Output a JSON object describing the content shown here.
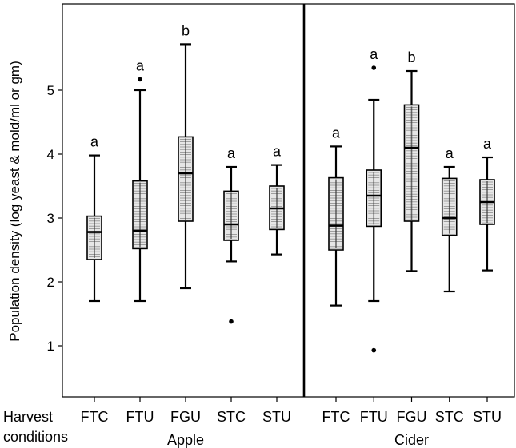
{
  "chart_data": {
    "type": "box",
    "ylabel": "Population density (log yeast & mold/ml or gm)",
    "xlabel_prefix": [
      "Harvest",
      "conditions"
    ],
    "ylim": [
      0.2,
      6.35
    ],
    "yticks": [
      1,
      2,
      3,
      4,
      5
    ],
    "panels": [
      {
        "name": "Apple",
        "categories": [
          "FTC",
          "FTU",
          "FGU",
          "STC",
          "STU"
        ],
        "boxes": [
          {
            "category": "FTC",
            "min": 1.7,
            "q1": 2.35,
            "median": 2.78,
            "q3": 3.03,
            "max": 3.98,
            "outliers": [],
            "letter": "a"
          },
          {
            "category": "FTU",
            "min": 1.7,
            "q1": 2.52,
            "median": 2.8,
            "q3": 3.58,
            "max": 5.0,
            "outliers": [
              5.17
            ],
            "letter": "a"
          },
          {
            "category": "FGU",
            "min": 1.9,
            "q1": 2.95,
            "median": 3.7,
            "q3": 4.27,
            "max": 5.72,
            "outliers": [],
            "letter": "b"
          },
          {
            "category": "STC",
            "min": 2.32,
            "q1": 2.65,
            "median": 2.9,
            "q3": 3.42,
            "max": 3.8,
            "outliers": [
              1.38
            ],
            "letter": "a"
          },
          {
            "category": "STU",
            "min": 2.43,
            "q1": 2.82,
            "median": 3.15,
            "q3": 3.5,
            "max": 3.83,
            "outliers": [],
            "letter": "a"
          }
        ]
      },
      {
        "name": "Cider",
        "categories": [
          "FTC",
          "FTU",
          "FGU",
          "STC",
          "STU"
        ],
        "boxes": [
          {
            "category": "FTC",
            "min": 1.63,
            "q1": 2.5,
            "median": 2.88,
            "q3": 3.63,
            "max": 4.12,
            "outliers": [],
            "letter": "a"
          },
          {
            "category": "FTU",
            "min": 1.7,
            "q1": 2.87,
            "median": 3.35,
            "q3": 3.75,
            "max": 4.85,
            "outliers": [
              0.93,
              5.35
            ],
            "letter": "a"
          },
          {
            "category": "FGU",
            "min": 2.17,
            "q1": 2.95,
            "median": 4.1,
            "q3": 4.77,
            "max": 5.3,
            "outliers": [],
            "letter": "b"
          },
          {
            "category": "STC",
            "min": 1.85,
            "q1": 2.73,
            "median": 3.0,
            "q3": 3.62,
            "max": 3.8,
            "outliers": [],
            "letter": "a"
          },
          {
            "category": "STU",
            "min": 2.18,
            "q1": 2.9,
            "median": 3.25,
            "q3": 3.6,
            "max": 3.95,
            "outliers": [],
            "letter": "a"
          }
        ]
      }
    ]
  }
}
